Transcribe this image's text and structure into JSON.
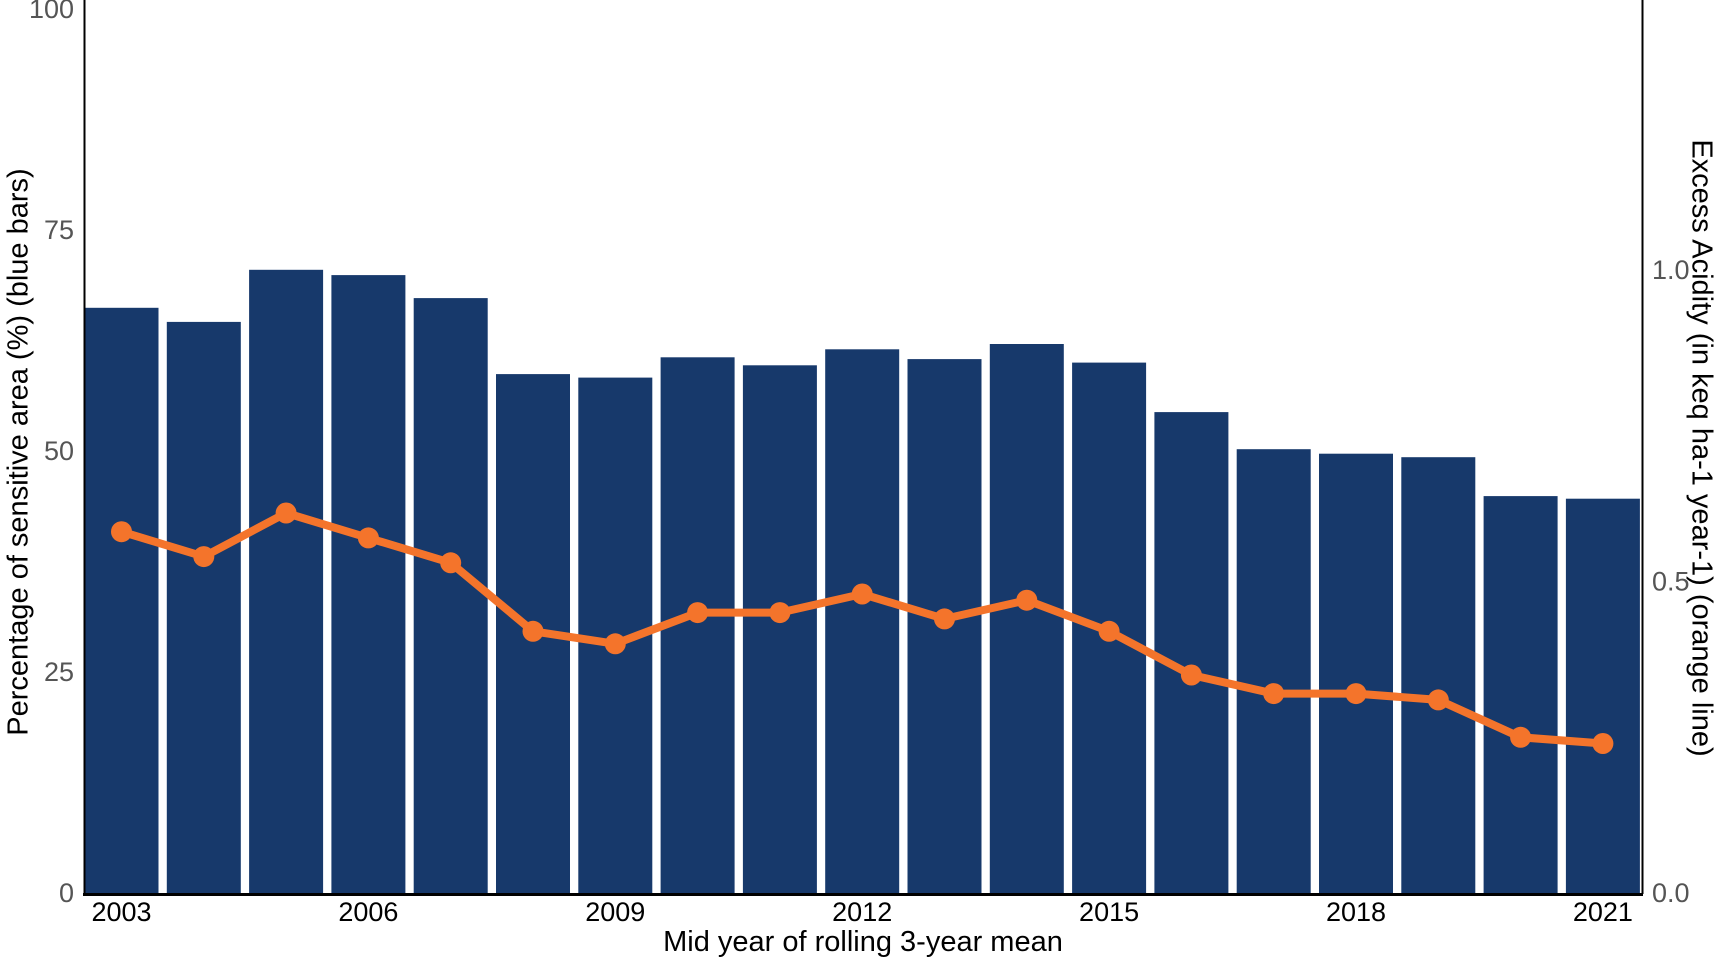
{
  "chart_data": {
    "type": "combo-bar-line-dual-axis",
    "title": "",
    "xlabel": "Mid year of rolling 3-year mean",
    "ylabel_left": "Percentage of sensitive area (%) (blue bars)",
    "ylabel_right": "Excess Acidity (in keq ha-1 year-1) (orange line)",
    "categories": [
      2003,
      2004,
      2005,
      2006,
      2007,
      2008,
      2009,
      2010,
      2011,
      2012,
      2013,
      2014,
      2015,
      2016,
      2017,
      2018,
      2019,
      2020,
      2021
    ],
    "series": [
      {
        "name": "Percentage of sensitive area (%)",
        "type": "bar",
        "axis": "left",
        "color": "#17396B",
        "values": [
          66.2,
          64.6,
          70.5,
          69.9,
          67.3,
          58.7,
          58.3,
          60.6,
          59.7,
          61.5,
          60.4,
          62.1,
          60.0,
          54.4,
          50.2,
          49.7,
          49.3,
          44.9,
          44.6
        ]
      },
      {
        "name": "Excess Acidity (keq ha-1 year-1)",
        "type": "line",
        "axis": "right",
        "color": "#F4742B",
        "values": [
          0.58,
          0.54,
          0.61,
          0.57,
          0.53,
          0.42,
          0.4,
          0.45,
          0.45,
          0.48,
          0.44,
          0.47,
          0.42,
          0.35,
          0.32,
          0.32,
          0.31,
          0.25,
          0.24
        ]
      }
    ],
    "left_ticks": [
      0,
      25,
      50,
      75,
      100
    ],
    "right_ticks": [
      {
        "label": "0.0",
        "value": 0.0
      },
      {
        "label": "0.5",
        "value": 0.5
      },
      {
        "label": "1.0",
        "value": 1.0
      }
    ],
    "x_ticks": [
      2003,
      2006,
      2009,
      2012,
      2015,
      2018,
      2021
    ],
    "ylim_left": [
      0,
      100
    ],
    "ylim_right": [
      0,
      1.42
    ],
    "grid": false,
    "legend": "none",
    "tick_color": "#555555",
    "x_tick_color": "#000000",
    "axis_line_color": "#000000"
  }
}
